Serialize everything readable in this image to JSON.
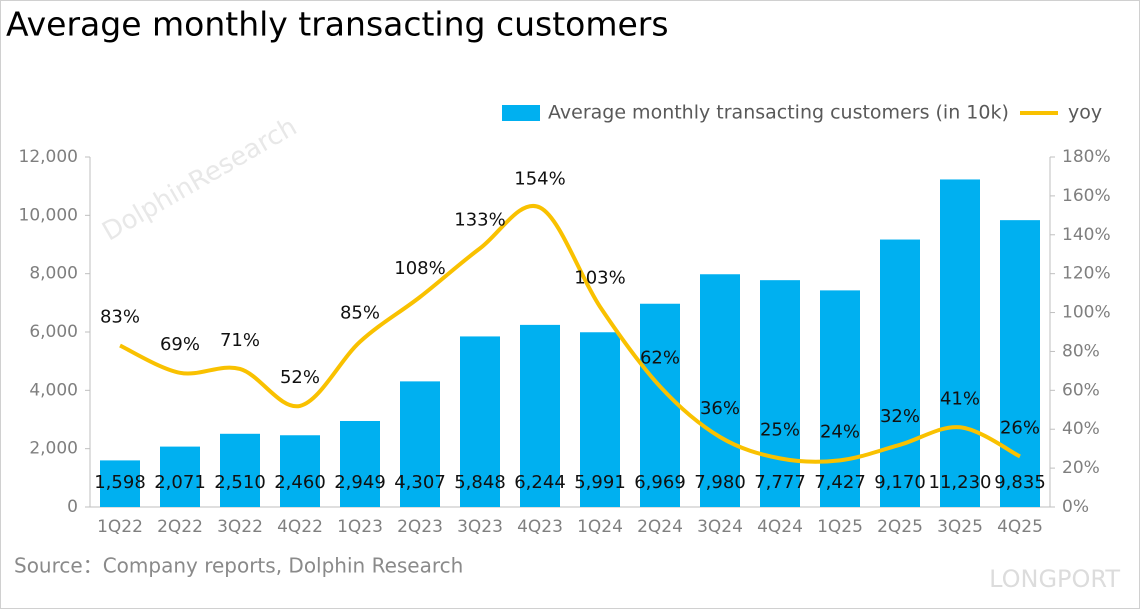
{
  "chart_data": {
    "type": "bar",
    "title": "Average monthly transacting customers",
    "source": "Source：Company reports, Dolphin Research",
    "watermarks": [
      "DolphinResearch",
      "LONGPORT"
    ],
    "categories": [
      "1Q22",
      "2Q22",
      "3Q22",
      "4Q22",
      "1Q23",
      "2Q23",
      "3Q23",
      "4Q23",
      "1Q24",
      "2Q24",
      "3Q24",
      "4Q24",
      "1Q25",
      "2Q25",
      "3Q25",
      "4Q25"
    ],
    "series": [
      {
        "name": "Average monthly transacting customers (in 10k)",
        "type": "bar",
        "color": "#00b0f0",
        "values": [
          1598,
          2071,
          2510,
          2460,
          2949,
          4307,
          5848,
          6244,
          5991,
          6969,
          7980,
          7777,
          7427,
          9170,
          11230,
          9835
        ],
        "value_labels": [
          "1,598",
          "2,071",
          "2,510",
          "2,460",
          "2,949",
          "4,307",
          "5,848",
          "6,244",
          "5,991",
          "6,969",
          "7,980",
          "7,777",
          "7,427",
          "9,170",
          "11,230",
          "9,835"
        ]
      },
      {
        "name": "yoy",
        "type": "line",
        "axis": "y2",
        "color": "#f9c100",
        "values": [
          83,
          69,
          71,
          52,
          85,
          108,
          133,
          154,
          103,
          62,
          36,
          25,
          24,
          32,
          41,
          26
        ],
        "value_labels": [
          "83%",
          "69%",
          "71%",
          "52%",
          "85%",
          "108%",
          "133%",
          "154%",
          "103%",
          "62%",
          "36%",
          "25%",
          "24%",
          "32%",
          "41%",
          "26%"
        ]
      }
    ],
    "ylim": [
      0,
      12000
    ],
    "yticks": [
      0,
      {
        "value": 2000,
        "label": "2,000"
      },
      {
        "value": 4000,
        "label": "4,000"
      },
      {
        "value": 6000,
        "label": "6,000"
      },
      {
        "value": 8000,
        "label": "8,000"
      },
      {
        "value": 10000,
        "label": "10,000"
      },
      {
        "value": 12000,
        "label": "12,000"
      }
    ],
    "y2lim": [
      0,
      180
    ],
    "y2ticks": [
      {
        "value": 0,
        "label": "0%"
      },
      {
        "value": 20,
        "label": "20%"
      },
      {
        "value": 40,
        "label": "40%"
      },
      {
        "value": 60,
        "label": "60%"
      },
      {
        "value": 80,
        "label": "80%"
      },
      {
        "value": 100,
        "label": "100%"
      },
      {
        "value": 120,
        "label": "120%"
      },
      {
        "value": 140,
        "label": "140%"
      },
      {
        "value": 160,
        "label": "160%"
      },
      {
        "value": 180,
        "label": "180%"
      }
    ],
    "grid": false,
    "legend": "top-right"
  }
}
